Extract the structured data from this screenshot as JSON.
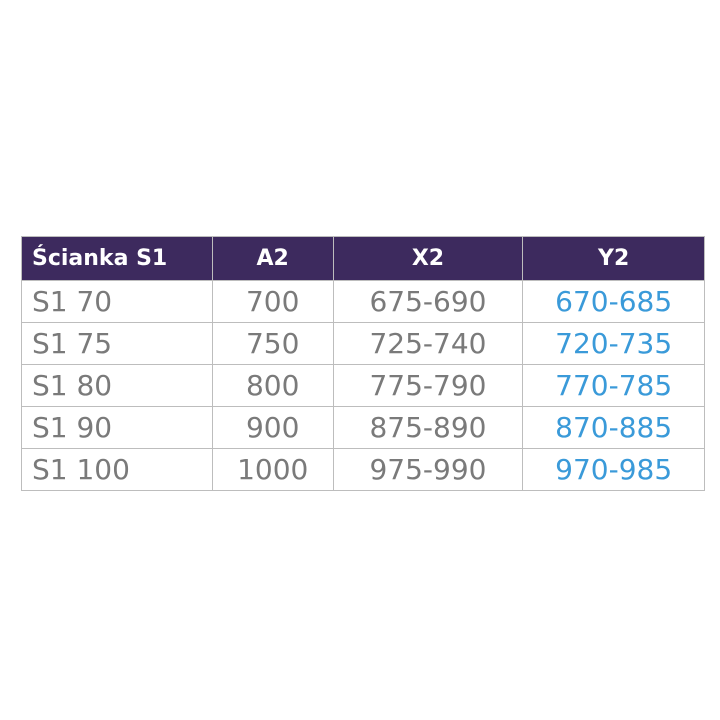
{
  "table": {
    "headers": [
      "Ścianka S1",
      "A2",
      "X2",
      "Y2"
    ],
    "rows": [
      [
        "S1 70",
        "700",
        "675-690",
        "670-685"
      ],
      [
        "S1 75",
        "750",
        "725-740",
        "720-735"
      ],
      [
        "S1 80",
        "800",
        "775-790",
        "770-785"
      ],
      [
        "S1 90",
        "900",
        "875-890",
        "870-885"
      ],
      [
        "S1 100",
        "1000",
        "975-990",
        "970-985"
      ]
    ],
    "colors": {
      "header_bg": "#3d2a5e",
      "header_text": "#ffffff",
      "text": "#7a7a7a",
      "y2_text": "#3a9ad9"
    }
  }
}
